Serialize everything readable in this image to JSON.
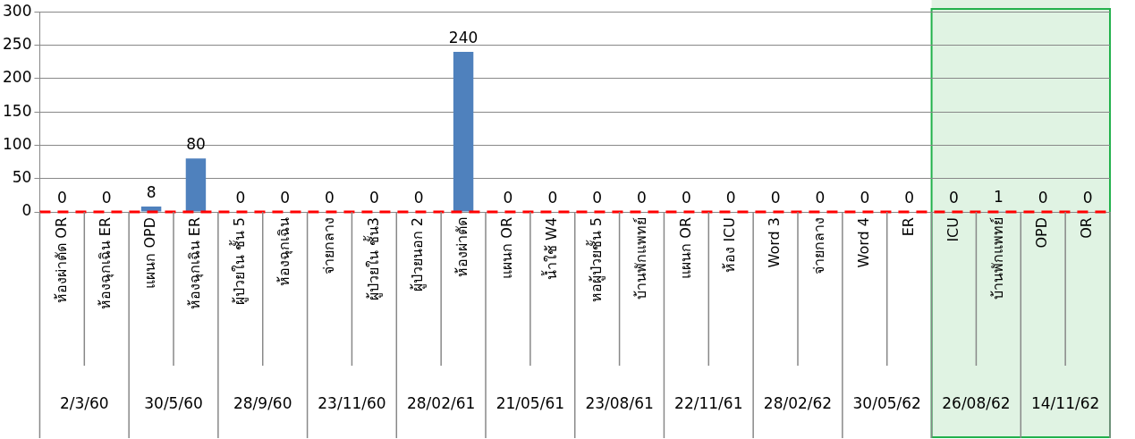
{
  "chart_data": {
    "type": "bar",
    "categories": [
      "ห้องผ่าตัด OR",
      "ห้องฉุกเฉิน ER",
      "แผนก OPD",
      "ห้องฉุกเฉิน ER",
      "ผู้ป่วยใน ชั้น 5",
      "ห้องฉุกเฉิน",
      "จ่ายกลาง",
      "ผู้ป่วยใน ชั้น3",
      "ผู้ป่วยนอก 2",
      "ห้องผ่าตัด",
      "แผนก OR",
      "น้ำใช้ W4",
      "หอผู้ป่วยชั้น 5",
      "บ้านพักแพทย์",
      "แผนก OR",
      "ห้อง ICU",
      "Word 3",
      "จ่ายกลาง",
      "Word 4",
      "ER",
      "ICU",
      "บ้านพักแพทย์",
      "OPD",
      "OR"
    ],
    "values": [
      0,
      0,
      8,
      80,
      0,
      0,
      0,
      0,
      0,
      240,
      0,
      0,
      0,
      0,
      0,
      0,
      0,
      0,
      0,
      0,
      0,
      1,
      0,
      0
    ],
    "color": "#4f81bd",
    "ylim": [
      0,
      300
    ],
    "yticks": [
      0,
      50,
      100,
      150,
      200,
      250,
      300
    ],
    "grid": "y",
    "legend": false,
    "data_labels": true,
    "annotations": [
      "2/3/60",
      "30/5/60",
      "28/9/60",
      "23/11/60",
      "28/02/61",
      "21/05/61",
      "23/08/61",
      "22/11/61",
      "28/02/62",
      "30/05/62",
      "26/08/62",
      "14/11/62"
    ],
    "ref_lines": [
      {
        "axis": "y",
        "value": 0,
        "color": "#ff0000",
        "line_style": "dashed"
      }
    ],
    "bands": [
      {
        "axis": "x",
        "from": "ICU",
        "to": "OR",
        "color": "#d8f0dc"
      }
    ]
  }
}
